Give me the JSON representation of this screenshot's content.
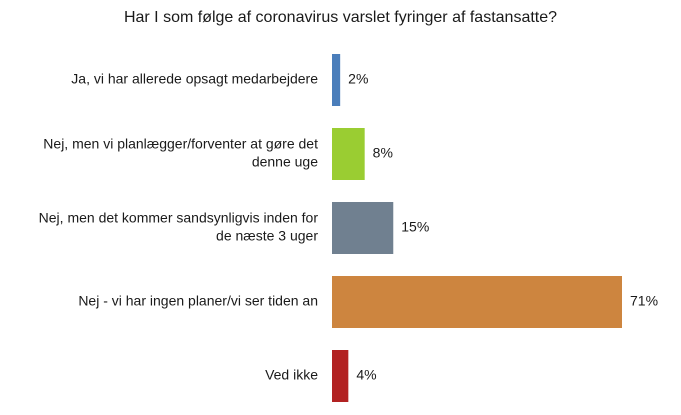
{
  "chart_data": {
    "type": "bar",
    "orientation": "horizontal",
    "title": "Har I som følge af coronavirus varslet fyringer af fastansatte?",
    "categories": [
      "Ja, vi har allerede opsagt medarbejdere",
      "Nej, men vi planlægger/forventer at gøre det denne uge",
      "Nej, men det kommer sandsynligvis inden for de næste 3 uger",
      "Nej - vi har ingen planer/vi ser tiden an",
      "Ved ikke"
    ],
    "values": [
      2,
      8,
      15,
      71,
      4
    ],
    "value_labels": [
      "2%",
      "8%",
      "15%",
      "71%",
      "4%"
    ],
    "colors": [
      "#4a7ebb",
      "#9acd32",
      "#708090",
      "#cd853f",
      "#b22222"
    ],
    "xlim": [
      0,
      71
    ],
    "grid": false,
    "legend": "none"
  }
}
